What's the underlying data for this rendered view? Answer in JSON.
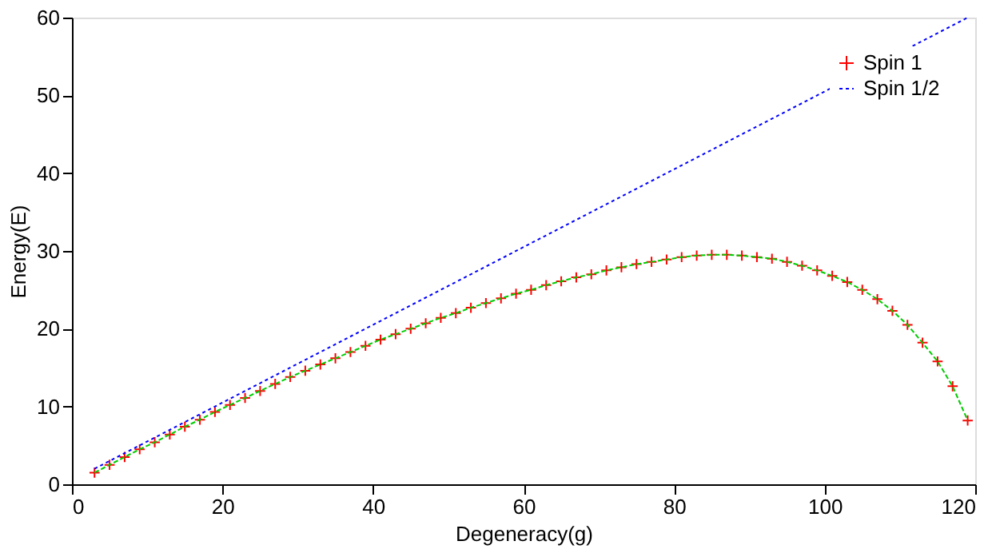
{
  "chart_data": {
    "type": "scatter",
    "xlabel": "Degeneracy(g)",
    "ylabel": "Energy(E)",
    "x": [
      3,
      5,
      7,
      9,
      11,
      13,
      15,
      17,
      19,
      21,
      23,
      25,
      27,
      29,
      31,
      33,
      35,
      37,
      39,
      41,
      43,
      45,
      47,
      49,
      51,
      53,
      55,
      57,
      59,
      61,
      63,
      65,
      67,
      69,
      71,
      73,
      75,
      77,
      79,
      81,
      83,
      85,
      87,
      89,
      91,
      93,
      95,
      97,
      99,
      101,
      103,
      105,
      107,
      109,
      111,
      113,
      115,
      117,
      119
    ],
    "series": [
      {
        "name": "Spin 1",
        "color": "#ff0000",
        "marker": "cross",
        "values": [
          1.5,
          2.5,
          3.5,
          4.5,
          5.4,
          6.4,
          7.4,
          8.3,
          9.3,
          10.2,
          11.1,
          12.0,
          12.9,
          13.8,
          14.6,
          15.4,
          16.2,
          17.0,
          17.8,
          18.6,
          19.3,
          20.0,
          20.7,
          21.4,
          22.0,
          22.7,
          23.3,
          23.9,
          24.5,
          25.0,
          25.6,
          26.1,
          26.6,
          27.0,
          27.5,
          27.9,
          28.3,
          28.6,
          28.9,
          29.2,
          29.4,
          29.5,
          29.5,
          29.4,
          29.2,
          29.0,
          28.6,
          28.1,
          27.5,
          26.8,
          26.0,
          25.0,
          23.8,
          22.3,
          20.5,
          18.2,
          15.8,
          12.6,
          8.2
        ]
      },
      {
        "type": "line",
        "color": "#00cc00",
        "line_style": "dashed",
        "values": [
          1.5,
          2.5,
          3.5,
          4.5,
          5.4,
          6.4,
          7.4,
          8.3,
          9.3,
          10.2,
          11.1,
          12.0,
          12.9,
          13.8,
          14.6,
          15.4,
          16.2,
          17.0,
          17.8,
          18.6,
          19.3,
          20.0,
          20.7,
          21.4,
          22.0,
          22.7,
          23.3,
          23.9,
          24.5,
          25.0,
          25.6,
          26.1,
          26.6,
          27.0,
          27.5,
          27.9,
          28.3,
          28.6,
          28.9,
          29.2,
          29.4,
          29.5,
          29.5,
          29.4,
          29.2,
          29.0,
          28.6,
          28.1,
          27.5,
          26.8,
          26.0,
          25.0,
          23.8,
          22.3,
          20.5,
          18.2,
          15.8,
          12.6,
          8.2
        ]
      },
      {
        "name": "Spin 1/2",
        "type": "line",
        "color": "#0000ff",
        "line_style": "dotted",
        "x": [
          3,
          119
        ],
        "values": [
          2,
          60
        ]
      }
    ],
    "xlim": [
      0,
      120
    ],
    "xticks": [
      0,
      20,
      40,
      60,
      80,
      100,
      120
    ],
    "ylim": [
      0,
      60
    ],
    "yticks": [
      0,
      10,
      20,
      30,
      40,
      50,
      60
    ],
    "grid": false,
    "legend": "top right"
  }
}
